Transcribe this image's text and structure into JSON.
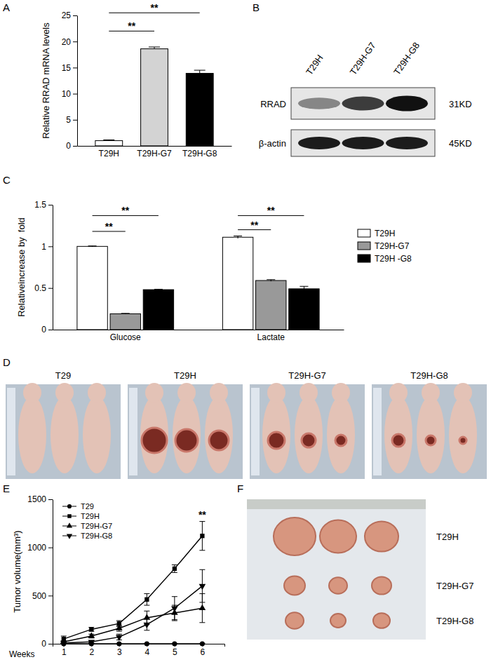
{
  "panel_labels": [
    "A",
    "B",
    "C",
    "D",
    "E",
    "F"
  ],
  "chart_data": [
    {
      "type": "bar",
      "categories": [
        "T29H",
        "T29H-G7",
        "T29H-G8"
      ],
      "values": [
        1.0,
        18.6,
        13.9
      ],
      "errors": [
        0.15,
        0.35,
        0.6
      ],
      "colors": [
        "#ffffff",
        "#d3d3d3",
        "#000000"
      ],
      "ylabel": "Relative RRAD mRNA levels",
      "ylim": [
        0,
        25
      ],
      "yticks": [
        0,
        5,
        10,
        15,
        20,
        25
      ],
      "annotations": [
        {
          "text": "**",
          "between": [
            0,
            1
          ],
          "y": 22
        },
        {
          "text": "**",
          "between": [
            0,
            2
          ],
          "y": 25.5
        }
      ]
    },
    {
      "type": "bar",
      "categories": [
        "Glucose",
        "Lactate"
      ],
      "series": [
        {
          "name": "T29H",
          "color": "#ffffff",
          "values": [
            1.0,
            1.11
          ],
          "errors": [
            0.005,
            0.015
          ]
        },
        {
          "name": "T29H-G7",
          "color": "#999999",
          "values": [
            0.19,
            0.59
          ],
          "errors": [
            0.005,
            0.01
          ]
        },
        {
          "name": "T29H -G8",
          "color": "#000000",
          "values": [
            0.48,
            0.49
          ],
          "errors": [
            0.005,
            0.03
          ]
        }
      ],
      "ylabel": "Relativeincrease by  fold",
      "ylim": [
        0,
        1.5
      ],
      "yticks": [
        0,
        0.5,
        1,
        1.5
      ],
      "legend": "right",
      "annotations": [
        {
          "text": "**",
          "category": 0,
          "between": [
            0,
            1
          ],
          "y": 1.18
        },
        {
          "text": "**",
          "category": 0,
          "between": [
            0,
            2
          ],
          "y": 1.37
        },
        {
          "text": "**",
          "category": 1,
          "between": [
            0,
            1
          ],
          "y": 1.2
        },
        {
          "text": "**",
          "category": 1,
          "between": [
            0,
            2
          ],
          "y": 1.37
        }
      ]
    },
    {
      "type": "line",
      "x": [
        1,
        2,
        3,
        4,
        5,
        6
      ],
      "xlim": [
        0.6,
        6.8
      ],
      "xticks": [
        1,
        2,
        3,
        4,
        5,
        6
      ],
      "xlabel": "Weeks",
      "ylabel": "Tumor volume(mm³)",
      "ylim": [
        0,
        1500
      ],
      "yticks": [
        0,
        500,
        1000,
        1500
      ],
      "legend": "upper left",
      "series": [
        {
          "name": "T29",
          "color": "#000000",
          "marker": "circle",
          "values": [
            0,
            0,
            0,
            0,
            0,
            0
          ],
          "errors": [
            0,
            0,
            0,
            0,
            0,
            0
          ]
        },
        {
          "name": "T29H",
          "color": "#000000",
          "marker": "square",
          "values": [
            50,
            150,
            210,
            460,
            780,
            1120
          ],
          "errors": [
            30,
            20,
            30,
            60,
            40,
            150
          ]
        },
        {
          "name": "T29H-G7",
          "color": "#000000",
          "marker": "triangle-up",
          "values": [
            20,
            80,
            160,
            270,
            320,
            370
          ],
          "errors": [
            10,
            20,
            30,
            70,
            80,
            150
          ]
        },
        {
          "name": "T29H-G8",
          "color": "#000000",
          "marker": "triangle-down",
          "values": [
            10,
            20,
            70,
            200,
            370,
            600
          ],
          "errors": [
            5,
            10,
            30,
            60,
            120,
            170
          ]
        }
      ],
      "annotations": [
        {
          "text": "**",
          "x": 6,
          "y": 1290
        }
      ]
    }
  ],
  "blot": {
    "lanes": [
      "T29H",
      "T29H-G7",
      "T29H-G8"
    ],
    "rows": [
      {
        "name": "RRAD",
        "size": "31KD"
      },
      {
        "name": "β-actin",
        "size": "45KD"
      }
    ]
  },
  "photos": {
    "titles": [
      "T29",
      "T29H",
      "T29H-G7",
      "T29H-G8"
    ]
  },
  "tumors": {
    "labels": [
      "T29H",
      "T29H-G7",
      "T29H-G8"
    ]
  }
}
